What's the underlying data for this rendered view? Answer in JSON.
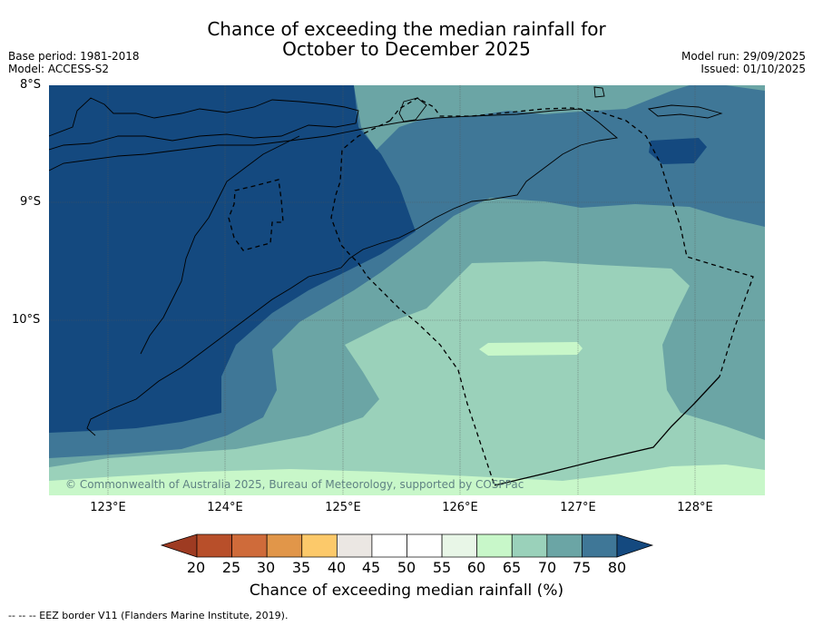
{
  "title_line1": "Chance of exceeding the median rainfall for",
  "title_line2": "October to December 2025",
  "meta_left": {
    "base_period": "Base period: 1981-2018",
    "model": "Model: ACCESS-S2"
  },
  "meta_right": {
    "model_run": "Model run: 29/09/2025",
    "issued": "Issued: 01/10/2025"
  },
  "lat_labels": [
    "8°S",
    "9°S",
    "10°S"
  ],
  "lon_labels": [
    "123°E",
    "124°E",
    "125°E",
    "126°E",
    "127°E",
    "128°E"
  ],
  "copyright": "© Commonwealth of Australia 2025, Bureau of Meteorology, supported by COSPPac",
  "colorbar": {
    "ticks": [
      "20",
      "25",
      "30",
      "35",
      "40",
      "45",
      "50",
      "55",
      "60",
      "65",
      "70",
      "75",
      "80"
    ],
    "colors": [
      "#b84f2a",
      "#cf6b3a",
      "#e19649",
      "#fcc96a",
      "#ebe7e3",
      "#ffffff",
      "#ffffff",
      "#e8f6e7",
      "#c8f7c9",
      "#9ad1ba",
      "#6ba5a5",
      "#3f7797"
    ],
    "under_color": "#9e3b22",
    "over_color": "#14497f",
    "label": "Chance of exceeding median rainfall (%)"
  },
  "map_colors": {
    "p80": "#14497f",
    "p75": "#3f7797",
    "p70": "#6ba5a5",
    "p65": "#9ad1ba",
    "p60": "#c8f7c9"
  },
  "eez_note": "--  --  -- EEZ border V11 (Flanders Marine Institute, 2019)."
}
